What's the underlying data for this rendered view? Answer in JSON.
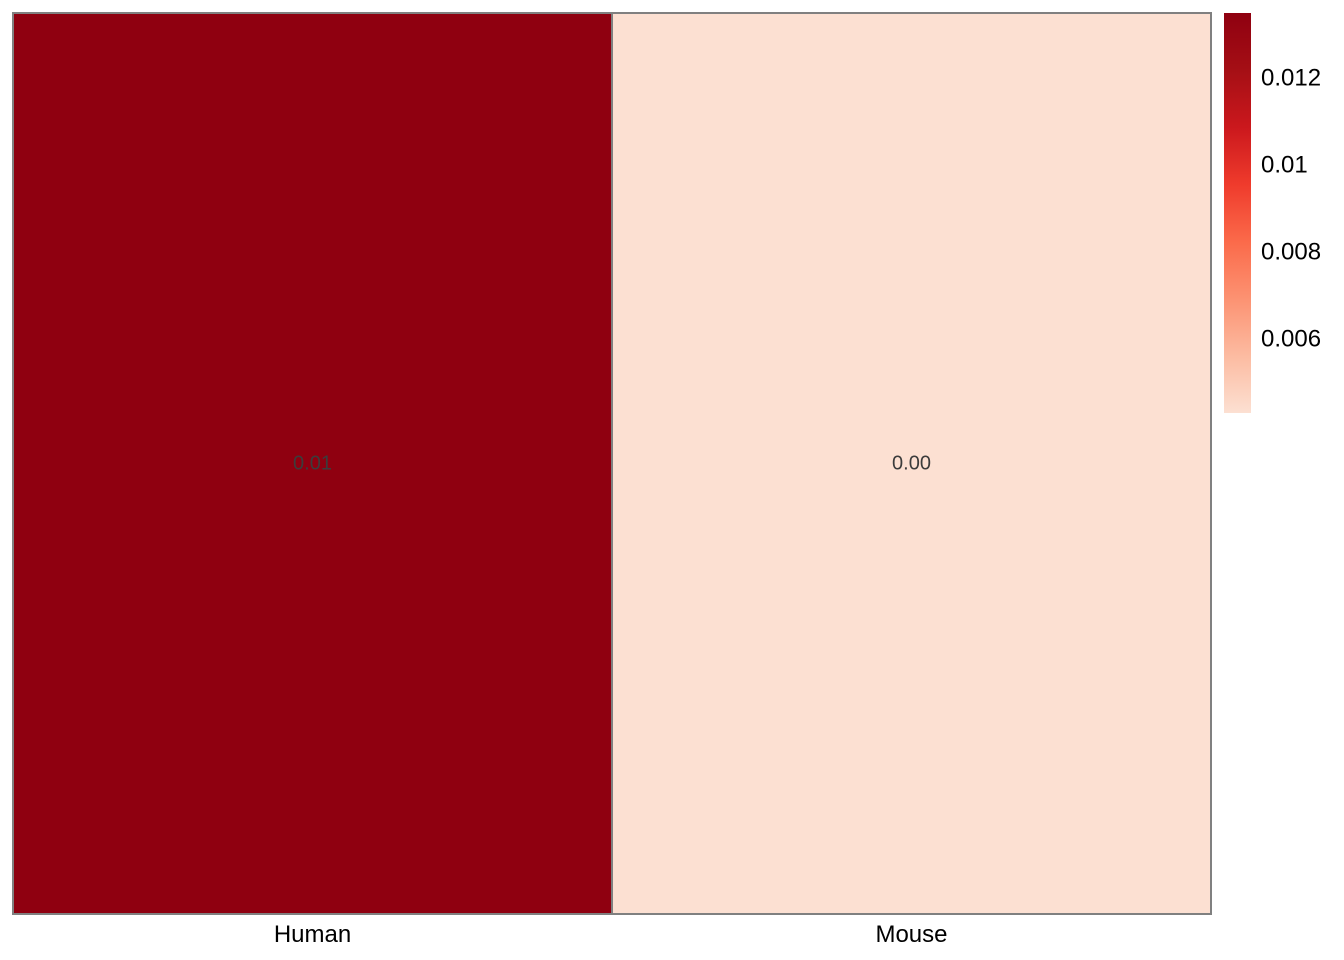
{
  "chart_data": {
    "type": "heatmap",
    "columns": [
      "Human",
      "Mouse"
    ],
    "rows": [
      ""
    ],
    "values": [
      [
        0.0135,
        0.0043
      ]
    ],
    "cell_labels": [
      [
        "0.01",
        "0.00"
      ]
    ],
    "border_color": "#808080",
    "color_scale": {
      "min": 0.0043,
      "max": 0.0135,
      "colors": [
        "#FCE0D2",
        "#FCBBA1",
        "#FC9272",
        "#FB6A4A",
        "#EF3B2C",
        "#CB181D",
        "#A50F15",
        "#8F0010"
      ]
    },
    "legend": {
      "placement": "right",
      "ticks": [
        {
          "value": 0.006,
          "label": "0.006"
        },
        {
          "value": 0.008,
          "label": "0.008"
        },
        {
          "value": 0.01,
          "label": "0.01"
        },
        {
          "value": 0.012,
          "label": "0.012"
        }
      ]
    },
    "title": "",
    "xlabel": "",
    "ylabel": ""
  }
}
